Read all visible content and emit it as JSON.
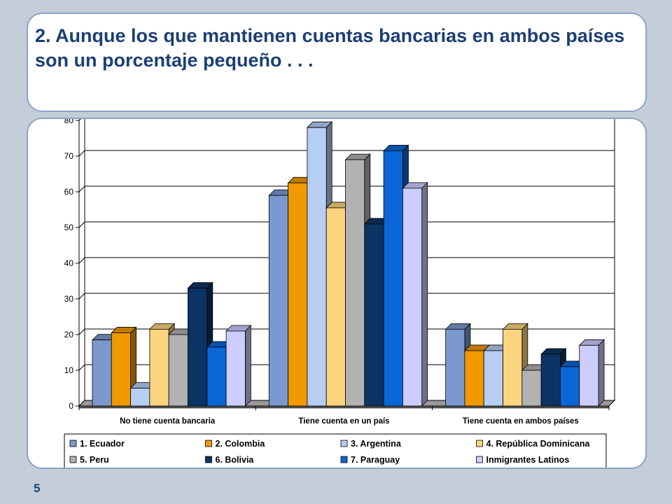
{
  "slide": {
    "title": "2. Aunque los que mantienen cuentas bancarias en ambos países son un porcentaje pequeño . . .",
    "page_number": "5"
  },
  "chart_data": {
    "type": "bar",
    "three_d": true,
    "categories": [
      "No tiene cuenta bancaria",
      "Tiene cuenta en un país",
      "Tiene cuenta en ambos países"
    ],
    "ylim": [
      0,
      80
    ],
    "yticks": [
      0,
      10,
      20,
      30,
      40,
      50,
      60,
      70,
      80
    ],
    "grid": true,
    "legend_position": "bottom",
    "series": [
      {
        "name": "1. Ecuador",
        "color": "#7b98cf",
        "values": [
          18.5,
          59,
          21.5
        ]
      },
      {
        "name": "2. Colombia",
        "color": "#f09a00",
        "values": [
          20.5,
          62.5,
          15.5
        ]
      },
      {
        "name": "3. Argentina",
        "color": "#b6cef4",
        "values": [
          5,
          78,
          15.5
        ]
      },
      {
        "name": "4. República Dominicana",
        "color": "#fad47e",
        "values": [
          21.5,
          55.5,
          21.5
        ]
      },
      {
        "name": "5. Peru",
        "color": "#b2b2b2",
        "values": [
          20,
          69,
          10
        ]
      },
      {
        "name": "6. Bolivia",
        "color": "#0b3464",
        "values": [
          33,
          51,
          14.5
        ]
      },
      {
        "name": "7. Paraguay",
        "color": "#0b66d6",
        "values": [
          16.5,
          71.5,
          11
        ]
      },
      {
        "name": "Inmigrantes Latinos",
        "color": "#ccccff",
        "values": [
          21,
          61,
          17
        ]
      }
    ]
  }
}
